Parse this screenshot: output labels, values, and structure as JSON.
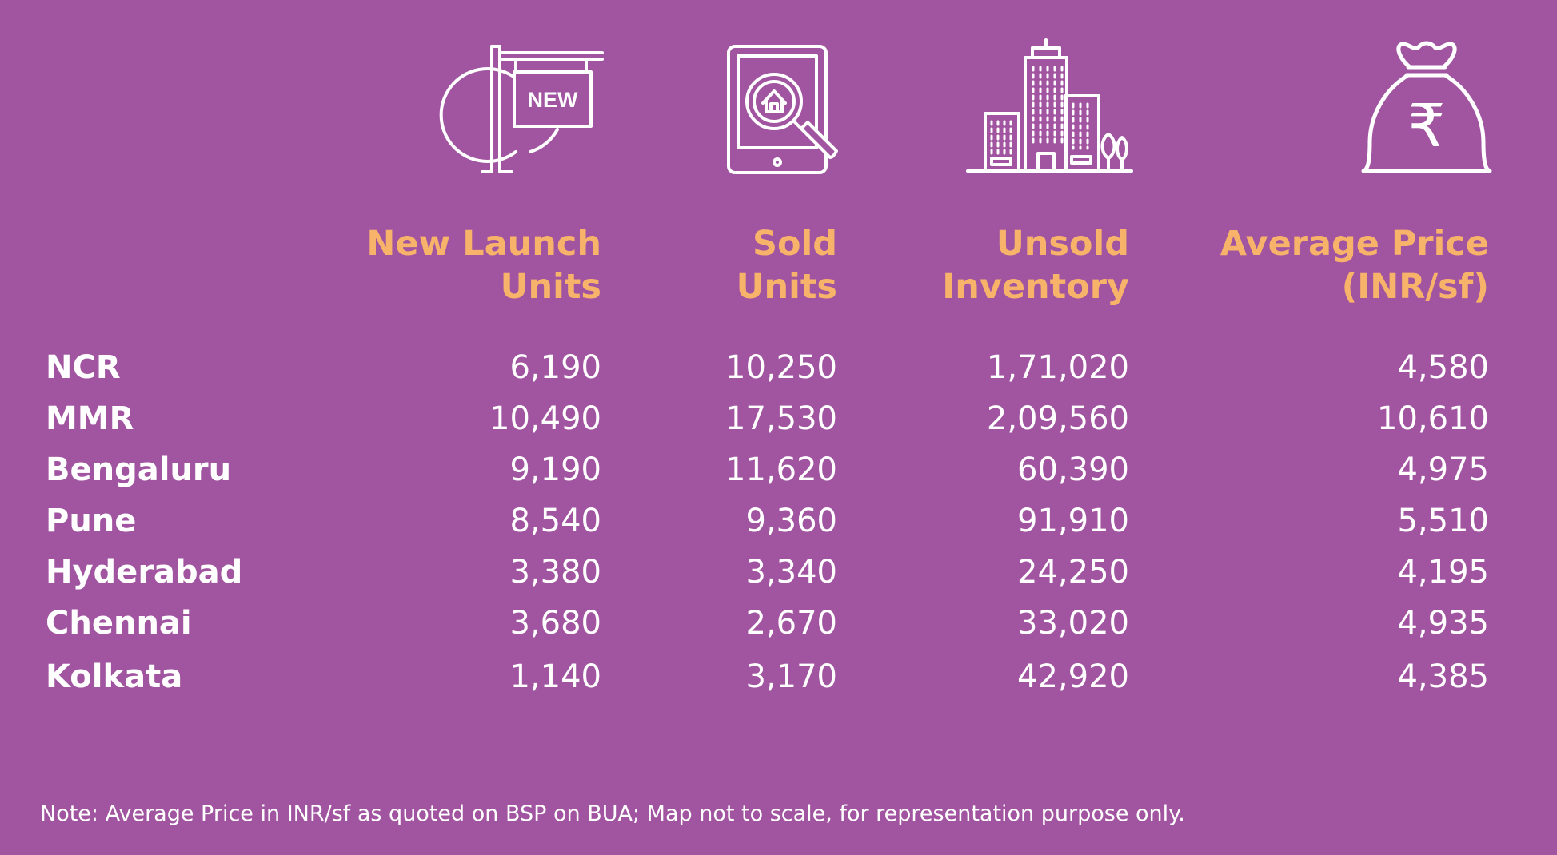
{
  "table": {
    "columns": [
      {
        "line1": "New Launch",
        "line2": "Units",
        "icon": "new-launch-sign-icon"
      },
      {
        "line1": "Sold",
        "line2": "Units",
        "icon": "tablet-house-search-icon"
      },
      {
        "line1": "Unsold",
        "line2": "Inventory",
        "icon": "buildings-icon"
      },
      {
        "line1": "Average Price",
        "line2": "(INR/sf)",
        "icon": "rupee-money-bag-icon"
      }
    ],
    "sign_text": "NEW",
    "currency_symbol": "₹",
    "rows": [
      {
        "city": "NCR",
        "new_launch": "6,190",
        "sold": "10,250",
        "unsold": "1,71,020",
        "avg_price": "4,580"
      },
      {
        "city": "MMR",
        "new_launch": "10,490",
        "sold": "17,530",
        "unsold": "2,09,560",
        "avg_price": "10,610"
      },
      {
        "city": "Bengaluru",
        "new_launch": "9,190",
        "sold": "11,620",
        "unsold": "60,390",
        "avg_price": "4,975"
      },
      {
        "city": "Pune",
        "new_launch": "8,540",
        "sold": "9,360",
        "unsold": "91,910",
        "avg_price": "5,510"
      },
      {
        "city": "Hyderabad",
        "new_launch": "3,380",
        "sold": "3,340",
        "unsold": "24,250",
        "avg_price": "4,195"
      },
      {
        "city": "Chennai",
        "new_launch": "3,680",
        "sold": "2,670",
        "unsold": "33,020",
        "avg_price": "4,935"
      },
      {
        "city": "Kolkata",
        "new_launch": "1,140",
        "sold": "3,170",
        "unsold": "42,920",
        "avg_price": "4,385"
      }
    ]
  },
  "note": "Note: Average Price in INR/sf as quoted on BSP on BUA; Map not to scale, for representation purpose only.",
  "colors": {
    "background": "#a155a0",
    "header": "#f8b36a",
    "text": "#ffffff"
  }
}
